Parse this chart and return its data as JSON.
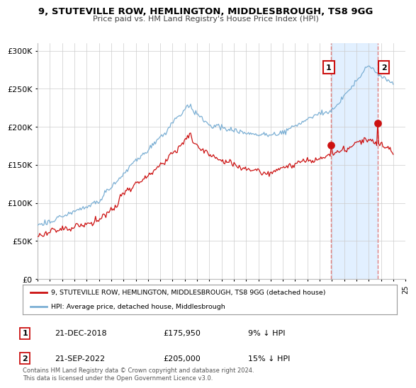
{
  "title_line1": "9, STUTEVILLE ROW, HEMLINGTON, MIDDLESBROUGH, TS8 9GG",
  "title_line2": "Price paid vs. HM Land Registry's House Price Index (HPI)",
  "legend_label1": "9, STUTEVILLE ROW, HEMLINGTON, MIDDLESBROUGH, TS8 9GG (detached house)",
  "legend_label2": "HPI: Average price, detached house, Middlesbrough",
  "annotation1_label": "1",
  "annotation1_date": "21-DEC-2018",
  "annotation1_price": "£175,950",
  "annotation1_hpi": "9% ↓ HPI",
  "annotation2_label": "2",
  "annotation2_date": "21-SEP-2022",
  "annotation2_price": "£205,000",
  "annotation2_hpi": "15% ↓ HPI",
  "footer": "Contains HM Land Registry data © Crown copyright and database right 2024.\nThis data is licensed under the Open Government Licence v3.0.",
  "hpi_color": "#7bafd4",
  "price_color": "#cc1111",
  "point_color": "#cc1111",
  "shade_color": "#ddeeff",
  "dashed_color": "#e08080",
  "annotation_box_color": "#cc1111",
  "background_color": "#ffffff",
  "grid_color": "#cccccc",
  "yticks": [
    0,
    50000,
    100000,
    150000,
    200000,
    250000,
    300000
  ],
  "ytick_labels": [
    "£0",
    "£50K",
    "£100K",
    "£150K",
    "£200K",
    "£250K",
    "£300K"
  ],
  "year_start": 1995,
  "year_end": 2025,
  "annotation1_year": 2018.95,
  "annotation2_year": 2022.72
}
